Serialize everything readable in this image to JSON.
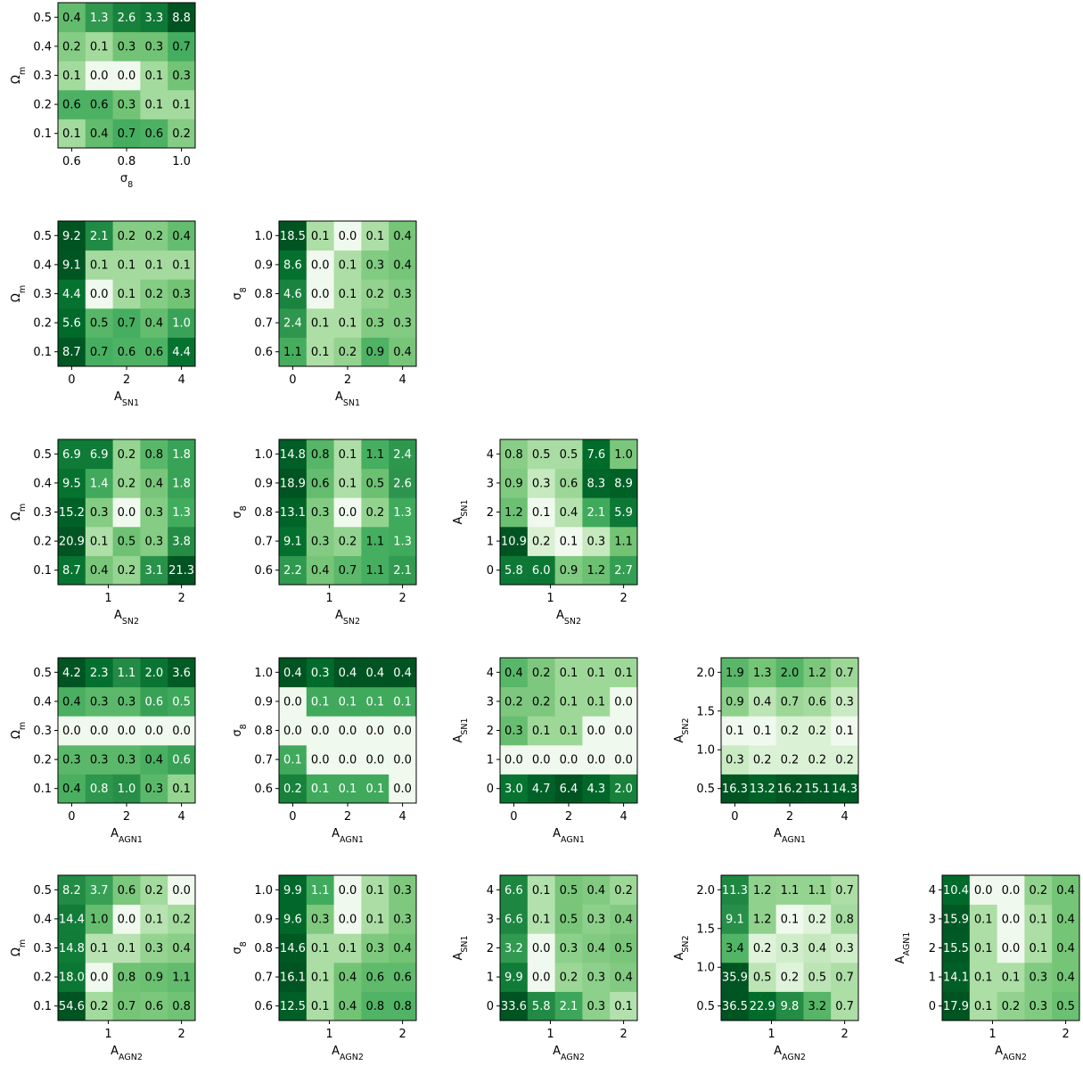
{
  "colormap": "Greens",
  "cell_text_colors": {
    "light": "#ffffff",
    "dark": "#000000"
  },
  "axis_names": {
    "om": "Ω_m",
    "s8": "σ_8",
    "sn1": "A_SN1",
    "sn2": "A_SN2",
    "agn1": "A_AGN1",
    "agn2": "A_AGN2"
  },
  "axes": {
    "om": {
      "ticks": [
        "0.1",
        "0.2",
        "0.3",
        "0.4",
        "0.5"
      ],
      "tick_index": [
        0,
        1,
        2,
        3,
        4
      ]
    },
    "s8": {
      "ticks": [
        "0.6",
        "0.7",
        "0.8",
        "0.9",
        "1.0"
      ],
      "tick_index": [
        0,
        1,
        2,
        3,
        4
      ]
    },
    "s8x": {
      "ticks": [
        "0.6",
        "0.8",
        "1.0"
      ],
      "tick_index": [
        0,
        2,
        4
      ]
    },
    "sn1": {
      "ticks": [
        "0",
        "1",
        "2",
        "3",
        "4"
      ],
      "tick_index": [
        0,
        1,
        2,
        3,
        4
      ]
    },
    "sn1x": {
      "ticks": [
        "0",
        "2",
        "4"
      ],
      "tick_index": [
        0,
        2,
        4
      ]
    },
    "agn1": {
      "ticks": [
        "0",
        "1",
        "2",
        "3",
        "4"
      ],
      "tick_index": [
        0,
        1,
        2,
        3,
        4
      ]
    },
    "agn1x": {
      "ticks": [
        "0",
        "2",
        "4"
      ],
      "tick_index": [
        0,
        2,
        4
      ]
    },
    "sn2y": {
      "ticks": [
        "0.5",
        "1.0",
        "1.5",
        "2.0"
      ],
      "tick_index": [
        0,
        1.333,
        2.667,
        4
      ]
    },
    "sn2x": {
      "ticks": [
        "1",
        "2"
      ],
      "tick_index": [
        1.333,
        4
      ]
    },
    "agn2x": {
      "ticks": [
        "1",
        "2"
      ],
      "tick_index": [
        1.333,
        4
      ]
    }
  },
  "chart_data": [
    {
      "type": "heatmap",
      "id": "om-s8",
      "xlabel": "σ_8",
      "ylabel": "Ω_m",
      "xaxis": "s8x",
      "yaxis": "om",
      "values": [
        [
          0.1,
          0.4,
          0.7,
          0.6,
          0.2
        ],
        [
          0.6,
          0.6,
          0.3,
          0.1,
          0.1
        ],
        [
          0.1,
          0.0,
          0.0,
          0.1,
          0.3
        ],
        [
          0.2,
          0.1,
          0.3,
          0.3,
          0.7
        ],
        [
          0.4,
          1.3,
          2.6,
          3.3,
          8.8
        ]
      ]
    },
    {
      "type": "heatmap",
      "id": "om-sn1",
      "xlabel": "A_SN1",
      "ylabel": "Ω_m",
      "xaxis": "sn1x",
      "yaxis": "om",
      "values": [
        [
          8.7,
          0.7,
          0.6,
          0.6,
          4.4
        ],
        [
          5.6,
          0.5,
          0.7,
          0.4,
          1.0
        ],
        [
          4.4,
          0.0,
          0.1,
          0.2,
          0.3
        ],
        [
          9.1,
          0.1,
          0.1,
          0.1,
          0.1
        ],
        [
          9.2,
          2.1,
          0.2,
          0.2,
          0.4
        ]
      ]
    },
    {
      "type": "heatmap",
      "id": "s8-sn1",
      "xlabel": "A_SN1",
      "ylabel": "σ_8",
      "xaxis": "sn1x",
      "yaxis": "s8",
      "values": [
        [
          1.1,
          0.1,
          0.2,
          0.9,
          0.4
        ],
        [
          2.4,
          0.1,
          0.1,
          0.3,
          0.3
        ],
        [
          4.6,
          0.0,
          0.1,
          0.2,
          0.3
        ],
        [
          8.6,
          0.0,
          0.1,
          0.3,
          0.4
        ],
        [
          18.5,
          0.1,
          0.0,
          0.1,
          0.4
        ]
      ]
    },
    {
      "type": "heatmap",
      "id": "om-sn2",
      "xlabel": "A_SN2",
      "ylabel": "Ω_m",
      "xaxis": "sn2x",
      "yaxis": "om",
      "values": [
        [
          8.7,
          0.4,
          0.2,
          3.1,
          21.3
        ],
        [
          20.9,
          0.1,
          0.5,
          0.3,
          3.8
        ],
        [
          15.2,
          0.3,
          0.0,
          0.3,
          1.3
        ],
        [
          9.5,
          1.4,
          0.2,
          0.4,
          1.8
        ],
        [
          6.9,
          6.9,
          0.2,
          0.8,
          1.8
        ]
      ]
    },
    {
      "type": "heatmap",
      "id": "s8-sn2",
      "xlabel": "A_SN2",
      "ylabel": "σ_8",
      "xaxis": "sn2x",
      "yaxis": "s8",
      "values": [
        [
          2.2,
          0.4,
          0.7,
          1.1,
          2.1
        ],
        [
          9.1,
          0.3,
          0.2,
          1.1,
          1.3
        ],
        [
          13.1,
          0.3,
          0.0,
          0.2,
          1.3
        ],
        [
          18.9,
          0.6,
          0.1,
          0.5,
          2.6
        ],
        [
          14.8,
          0.8,
          0.1,
          1.1,
          2.4
        ]
      ]
    },
    {
      "type": "heatmap",
      "id": "sn1-sn2",
      "xlabel": "A_SN2",
      "ylabel": "A_SN1",
      "xaxis": "sn2x",
      "yaxis": "sn1",
      "values": [
        [
          5.8,
          6.0,
          0.9,
          1.2,
          2.7
        ],
        [
          10.9,
          0.2,
          0.1,
          0.3,
          1.1
        ],
        [
          1.2,
          0.1,
          0.4,
          2.1,
          5.9
        ],
        [
          0.9,
          0.3,
          0.6,
          8.3,
          8.9
        ],
        [
          0.8,
          0.5,
          0.5,
          7.6,
          1.0
        ]
      ]
    },
    {
      "type": "heatmap",
      "id": "om-agn1",
      "xlabel": "A_AGN1",
      "ylabel": "Ω_m",
      "xaxis": "agn1x",
      "yaxis": "om",
      "values": [
        [
          0.4,
          0.8,
          1.0,
          0.3,
          0.1
        ],
        [
          0.3,
          0.3,
          0.3,
          0.4,
          0.6
        ],
        [
          0.0,
          0.0,
          0.0,
          0.0,
          0.0
        ],
        [
          0.4,
          0.3,
          0.3,
          0.6,
          0.5
        ],
        [
          4.2,
          2.3,
          1.1,
          2.0,
          3.6
        ]
      ]
    },
    {
      "type": "heatmap",
      "id": "s8-agn1",
      "xlabel": "A_AGN1",
      "ylabel": "σ_8",
      "xaxis": "agn1x",
      "yaxis": "s8",
      "values": [
        [
          0.2,
          0.1,
          0.1,
          0.1,
          0.0
        ],
        [
          0.1,
          0.0,
          0.0,
          0.0,
          0.0
        ],
        [
          0.0,
          0.0,
          0.0,
          0.0,
          0.0
        ],
        [
          0.0,
          0.1,
          0.1,
          0.1,
          0.1
        ],
        [
          0.4,
          0.3,
          0.4,
          0.4,
          0.4
        ]
      ]
    },
    {
      "type": "heatmap",
      "id": "sn1-agn1",
      "xlabel": "A_AGN1",
      "ylabel": "A_SN1",
      "xaxis": "agn1x",
      "yaxis": "sn1",
      "values": [
        [
          3.0,
          4.7,
          6.4,
          4.3,
          2.0
        ],
        [
          0.0,
          0.0,
          0.0,
          0.0,
          0.0
        ],
        [
          0.3,
          0.1,
          0.1,
          0.0,
          0.0
        ],
        [
          0.2,
          0.2,
          0.1,
          0.1,
          0.0
        ],
        [
          0.4,
          0.2,
          0.1,
          0.1,
          0.1
        ]
      ]
    },
    {
      "type": "heatmap",
      "id": "sn2-agn1",
      "xlabel": "A_AGN1",
      "ylabel": "A_SN2",
      "xaxis": "agn1x",
      "yaxis": "sn2y",
      "values": [
        [
          16.3,
          13.2,
          16.2,
          15.1,
          14.3
        ],
        [
          0.3,
          0.2,
          0.2,
          0.2,
          0.2
        ],
        [
          0.1,
          0.1,
          0.2,
          0.2,
          0.1
        ],
        [
          0.9,
          0.4,
          0.7,
          0.6,
          0.3
        ],
        [
          1.9,
          1.3,
          2.0,
          1.2,
          0.7
        ]
      ]
    },
    {
      "type": "heatmap",
      "id": "om-agn2",
      "xlabel": "A_AGN2",
      "ylabel": "Ω_m",
      "xaxis": "agn2x",
      "yaxis": "om",
      "values": [
        [
          54.6,
          0.2,
          0.7,
          0.6,
          0.8
        ],
        [
          18.0,
          0.0,
          0.8,
          0.9,
          1.1
        ],
        [
          14.8,
          0.1,
          0.1,
          0.3,
          0.4
        ],
        [
          14.4,
          1.0,
          0.0,
          0.1,
          0.2
        ],
        [
          8.2,
          3.7,
          0.6,
          0.2,
          0.0
        ]
      ]
    },
    {
      "type": "heatmap",
      "id": "s8-agn2",
      "xlabel": "A_AGN2",
      "ylabel": "σ_8",
      "xaxis": "agn2x",
      "yaxis": "s8",
      "values": [
        [
          12.5,
          0.1,
          0.4,
          0.8,
          0.8
        ],
        [
          16.1,
          0.1,
          0.4,
          0.6,
          0.6
        ],
        [
          14.6,
          0.1,
          0.1,
          0.3,
          0.4
        ],
        [
          9.6,
          0.3,
          0.0,
          0.1,
          0.3
        ],
        [
          9.9,
          1.1,
          0.0,
          0.1,
          0.3
        ]
      ]
    },
    {
      "type": "heatmap",
      "id": "sn1-agn2",
      "xlabel": "A_AGN2",
      "ylabel": "A_SN1",
      "xaxis": "agn2x",
      "yaxis": "sn1",
      "values": [
        [
          33.6,
          5.8,
          2.1,
          0.3,
          0.1
        ],
        [
          9.9,
          0.0,
          0.2,
          0.3,
          0.4
        ],
        [
          3.2,
          0.0,
          0.3,
          0.4,
          0.5
        ],
        [
          6.6,
          0.1,
          0.5,
          0.3,
          0.4
        ],
        [
          6.6,
          0.1,
          0.5,
          0.4,
          0.2
        ]
      ]
    },
    {
      "type": "heatmap",
      "id": "sn2-agn2",
      "xlabel": "A_AGN2",
      "ylabel": "A_SN2",
      "xaxis": "agn2x",
      "yaxis": "sn2y",
      "values": [
        [
          36.5,
          22.9,
          9.8,
          3.2,
          0.7
        ],
        [
          35.9,
          0.5,
          0.2,
          0.5,
          0.7
        ],
        [
          3.4,
          0.2,
          0.3,
          0.4,
          0.3
        ],
        [
          9.1,
          1.2,
          0.1,
          0.2,
          0.8
        ],
        [
          11.3,
          1.2,
          1.1,
          1.1,
          0.7
        ]
      ]
    },
    {
      "type": "heatmap",
      "id": "agn1-agn2",
      "xlabel": "A_AGN2",
      "ylabel": "A_AGN1",
      "xaxis": "agn2x",
      "yaxis": "agn1",
      "values": [
        [
          17.9,
          0.1,
          0.2,
          0.3,
          0.5
        ],
        [
          14.1,
          0.1,
          0.1,
          0.3,
          0.4
        ],
        [
          15.5,
          0.1,
          0.0,
          0.1,
          0.4
        ],
        [
          15.9,
          0.1,
          0.0,
          0.1,
          0.4
        ],
        [
          10.4,
          0.0,
          0.0,
          0.2,
          0.4
        ]
      ]
    }
  ]
}
